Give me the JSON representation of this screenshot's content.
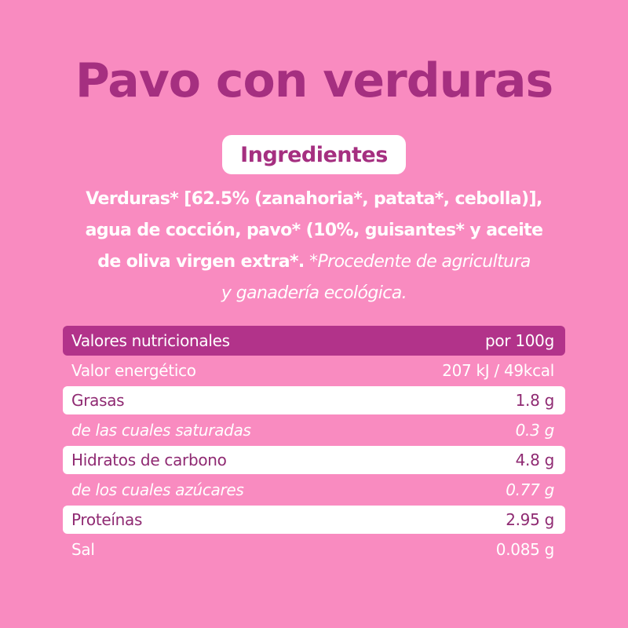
{
  "title": "Pavo con verduras",
  "ingredients_label": "Ingredientes",
  "ingredients": {
    "line1": "Verduras* [62.5% (zanahoria*, patata*, cebolla)],",
    "line2": "agua de cocción, pavo* (10%, guisantes* y aceite",
    "line3_bold": "de oliva virgen extra*.",
    "line3_italic": " *Procedente de agricultura",
    "line4_italic": "y ganadería ecológica."
  },
  "nutrition": {
    "header": {
      "label": "Valores nutricionales",
      "value": "por 100g"
    },
    "rows": [
      {
        "label": "Valor energético",
        "value": "207 kJ / 49kcal"
      },
      {
        "label": "Grasas",
        "value": "1.8 g"
      },
      {
        "label": "de las cuales saturadas",
        "value": "0.3 g"
      },
      {
        "label": "Hidratos de carbono",
        "value": "4.8 g"
      },
      {
        "label": "de los cuales azúcares",
        "value": "0.77 g"
      },
      {
        "label": "Proteínas",
        "value": "2.95 g"
      },
      {
        "label": "Sal",
        "value": "0.085 g"
      }
    ]
  },
  "colors": {
    "background": "#f98bc0",
    "accent": "#a52f80",
    "header_bar": "#b2338a"
  }
}
